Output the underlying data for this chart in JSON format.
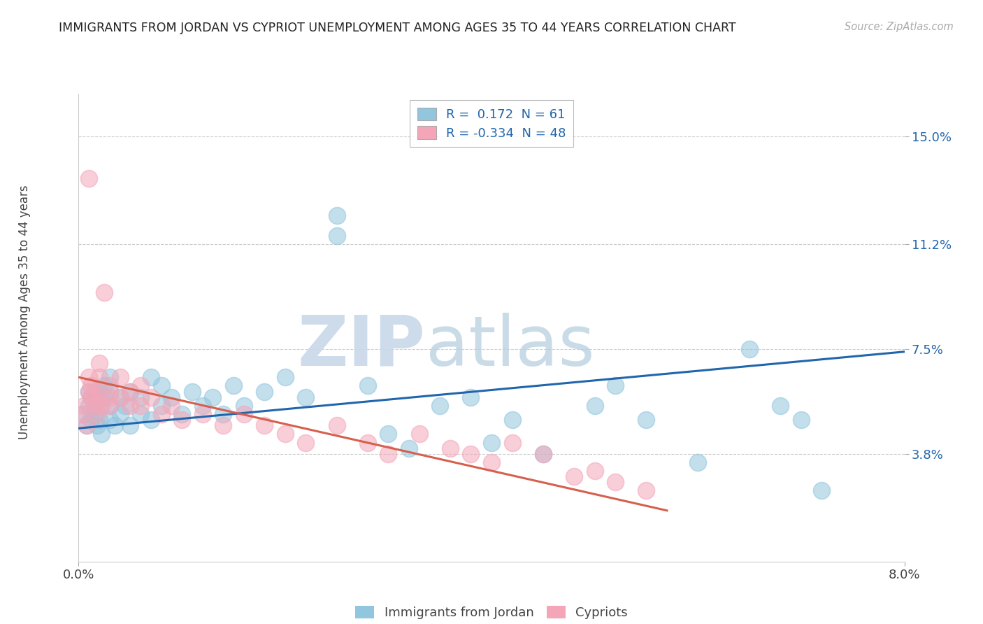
{
  "title": "IMMIGRANTS FROM JORDAN VS CYPRIOT UNEMPLOYMENT AMONG AGES 35 TO 44 YEARS CORRELATION CHART",
  "source": "Source: ZipAtlas.com",
  "ylabel": "Unemployment Among Ages 35 to 44 years",
  "legend_label1": "Immigrants from Jordan",
  "legend_label2": "Cypriots",
  "R1": 0.172,
  "N1": 61,
  "R2": -0.334,
  "N2": 48,
  "xlim": [
    0.0,
    0.08
  ],
  "ylim": [
    0.0,
    0.165
  ],
  "yticks": [
    0.038,
    0.075,
    0.112,
    0.15
  ],
  "ytick_labels": [
    "3.8%",
    "7.5%",
    "11.2%",
    "15.0%"
  ],
  "color_blue": "#92c5de",
  "color_pink": "#f4a6b8",
  "color_blue_line": "#2166ac",
  "color_pink_line": "#d6604d",
  "watermark_zip": "ZIP",
  "watermark_atlas": "atlas",
  "blue_scatter_x": [
    0.0005,
    0.0008,
    0.001,
    0.001,
    0.0012,
    0.0012,
    0.0015,
    0.0015,
    0.0015,
    0.0018,
    0.002,
    0.002,
    0.002,
    0.0022,
    0.0025,
    0.0025,
    0.003,
    0.003,
    0.003,
    0.003,
    0.0035,
    0.004,
    0.004,
    0.0045,
    0.005,
    0.005,
    0.006,
    0.006,
    0.007,
    0.007,
    0.008,
    0.008,
    0.009,
    0.01,
    0.011,
    0.012,
    0.013,
    0.014,
    0.015,
    0.016,
    0.018,
    0.02,
    0.022,
    0.025,
    0.025,
    0.028,
    0.03,
    0.032,
    0.035,
    0.038,
    0.04,
    0.042,
    0.045,
    0.05,
    0.052,
    0.055,
    0.06,
    0.065,
    0.068,
    0.07,
    0.072
  ],
  "blue_scatter_y": [
    0.052,
    0.048,
    0.055,
    0.06,
    0.05,
    0.058,
    0.052,
    0.055,
    0.06,
    0.048,
    0.05,
    0.055,
    0.06,
    0.045,
    0.058,
    0.062,
    0.05,
    0.055,
    0.06,
    0.065,
    0.048,
    0.052,
    0.058,
    0.055,
    0.048,
    0.06,
    0.052,
    0.058,
    0.05,
    0.065,
    0.055,
    0.062,
    0.058,
    0.052,
    0.06,
    0.055,
    0.058,
    0.052,
    0.062,
    0.055,
    0.06,
    0.065,
    0.058,
    0.115,
    0.122,
    0.062,
    0.045,
    0.04,
    0.055,
    0.058,
    0.042,
    0.05,
    0.038,
    0.055,
    0.062,
    0.05,
    0.035,
    0.075,
    0.055,
    0.05,
    0.025
  ],
  "pink_scatter_x": [
    0.0003,
    0.0005,
    0.0008,
    0.001,
    0.001,
    0.001,
    0.0012,
    0.0012,
    0.0015,
    0.0015,
    0.0018,
    0.002,
    0.002,
    0.002,
    0.0022,
    0.0025,
    0.003,
    0.003,
    0.003,
    0.004,
    0.004,
    0.005,
    0.005,
    0.006,
    0.006,
    0.007,
    0.008,
    0.009,
    0.01,
    0.012,
    0.014,
    0.016,
    0.018,
    0.02,
    0.022,
    0.025,
    0.028,
    0.03,
    0.033,
    0.036,
    0.038,
    0.04,
    0.042,
    0.045,
    0.048,
    0.05,
    0.052,
    0.055
  ],
  "pink_scatter_y": [
    0.052,
    0.055,
    0.048,
    0.06,
    0.065,
    0.135,
    0.058,
    0.062,
    0.055,
    0.06,
    0.052,
    0.058,
    0.065,
    0.07,
    0.055,
    0.095,
    0.058,
    0.062,
    0.055,
    0.058,
    0.065,
    0.055,
    0.06,
    0.062,
    0.055,
    0.058,
    0.052,
    0.055,
    0.05,
    0.052,
    0.048,
    0.052,
    0.048,
    0.045,
    0.042,
    0.048,
    0.042,
    0.038,
    0.045,
    0.04,
    0.038,
    0.035,
    0.042,
    0.038,
    0.03,
    0.032,
    0.028,
    0.025
  ],
  "blue_line_x": [
    0.0,
    0.08
  ],
  "blue_line_y": [
    0.047,
    0.074
  ],
  "pink_line_x": [
    0.0,
    0.057
  ],
  "pink_line_y": [
    0.065,
    0.018
  ]
}
